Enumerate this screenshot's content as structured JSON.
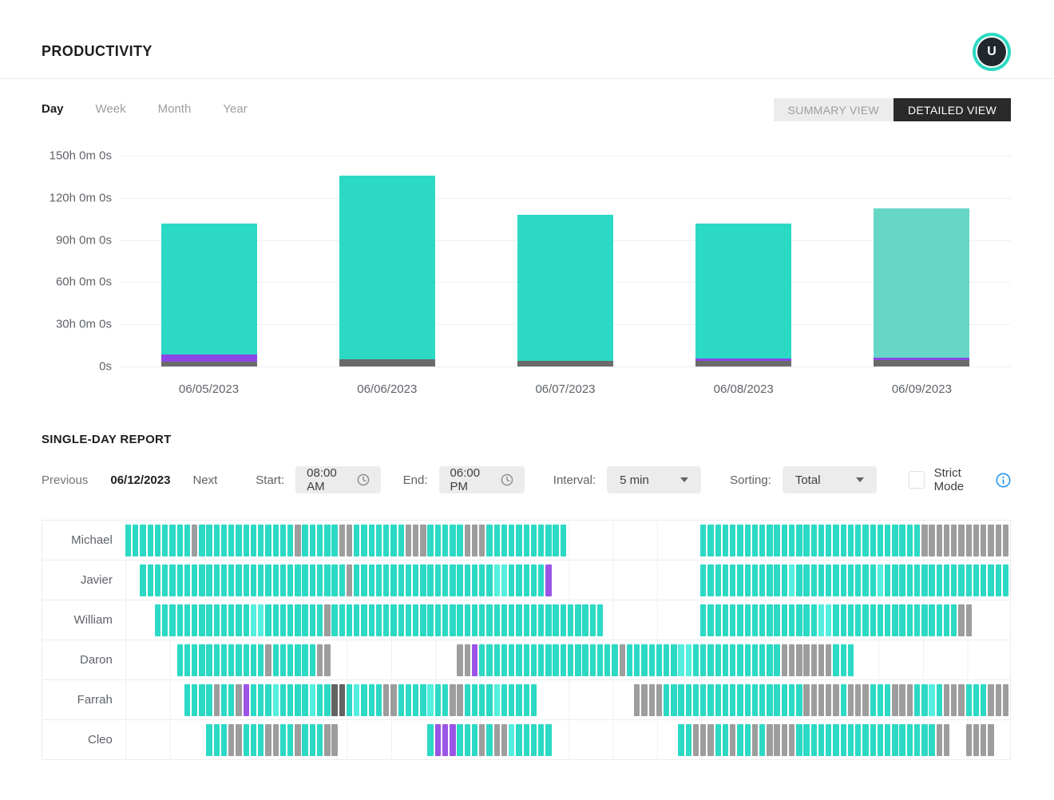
{
  "header": {
    "title": "PRODUCTIVITY",
    "avatar_initial": "U"
  },
  "tabs": [
    {
      "label": "Day",
      "active": true
    },
    {
      "label": "Week",
      "active": false
    },
    {
      "label": "Month",
      "active": false
    },
    {
      "label": "Year",
      "active": false
    }
  ],
  "view_toggle": {
    "summary": "SUMMARY VIEW",
    "detailed": "DETAILED VIEW",
    "active": "detailed"
  },
  "chart_data": {
    "type": "bar",
    "stacked": true,
    "title": "",
    "xlabel": "",
    "ylabel": "",
    "ylim": [
      0,
      150
    ],
    "grid": true,
    "yticks": [
      {
        "value": 0,
        "label": "0s"
      },
      {
        "value": 30,
        "label": "30h 0m 0s"
      },
      {
        "value": 60,
        "label": "60h 0m 0s"
      },
      {
        "value": 90,
        "label": "90h 0m 0s"
      },
      {
        "value": 120,
        "label": "120h 0m 0s"
      },
      {
        "value": 150,
        "label": "150h 0m 0s"
      }
    ],
    "categories": [
      "06/05/2023",
      "06/06/2023",
      "06/07/2023",
      "06/08/2023",
      "06/09/2023"
    ],
    "totals_hours": [
      101.5,
      136,
      108,
      101.5,
      112.5
    ],
    "bars": [
      {
        "date": "06/05/2023",
        "segments": [
          {
            "type": "gray",
            "hours": 3.5
          },
          {
            "type": "purple",
            "hours": 5
          },
          {
            "type": "teal",
            "hours": 93
          }
        ]
      },
      {
        "date": "06/06/2023",
        "segments": [
          {
            "type": "gray",
            "hours": 5
          },
          {
            "type": "teal",
            "hours": 131
          }
        ]
      },
      {
        "date": "06/07/2023",
        "segments": [
          {
            "type": "gray",
            "hours": 4
          },
          {
            "type": "teal",
            "hours": 104
          }
        ]
      },
      {
        "date": "06/08/2023",
        "segments": [
          {
            "type": "gray",
            "hours": 4
          },
          {
            "type": "purple",
            "hours": 1.5
          },
          {
            "type": "teal",
            "hours": 96
          }
        ]
      },
      {
        "date": "06/09/2023",
        "segments": [
          {
            "type": "gray",
            "hours": 4.5
          },
          {
            "type": "purple",
            "hours": 1.5
          },
          {
            "type": "teal_light",
            "hours": 106.5
          }
        ]
      }
    ],
    "colors": {
      "teal": "#2cd9c5",
      "teal_light": "#66d7c6",
      "gray": "#6a6a6a",
      "purple": "#8a47e6"
    }
  },
  "report": {
    "heading": "SINGLE-DAY REPORT",
    "previous_label": "Previous",
    "date": "06/12/2023",
    "next_label": "Next",
    "start_label": "Start:",
    "start_value": "08:00 AM",
    "end_label": "End:",
    "end_value": "06:00 PM",
    "interval_label": "Interval:",
    "interval_value": "5 min",
    "sorting_label": "Sorting:",
    "sorting_value": "Total",
    "strict_mode_label": "Strict Mode",
    "strict_mode_checked": false
  },
  "timeline": {
    "start": "08:00 AM",
    "end": "06:00 PM",
    "interval_minutes": 5,
    "cells_per_row": 120,
    "cell_colors": {
      "T": "#2cd9c5",
      "L": "#54efde",
      "G": "#9d9d9d",
      "D": "#636363",
      "P": "#9b54e6",
      ".": "transparent"
    },
    "rows": [
      {
        "name": "Michael",
        "cells": "9T 1G 13T 1G 5T 2G 7T 3G 5T 3G 11T 18. 30T 12G"
      },
      {
        "name": "Javier",
        "cells": "2. 28T 1G 19T 2L 5T 1P 20. 12T 1L 11T 1L 17T"
      },
      {
        "name": "William",
        "cells": "4. 13T 2L 8T 1G 37T 13. 16T 2L 17T 2G 5."
      },
      {
        "name": "Daron",
        "cells": "7. 12T 1G 6T 2G 17. 2G 1P 19T 1G 7T 2L 12T 7G 3T 21."
      },
      {
        "name": "Farrah",
        "cells": "8. 4T 1G 2T 1G 1P 3T 1L 4T 1L 2T 2D 1T 1L 3T 2G 4T 1L 2T 2G 4T 1L 5T 13. 4G 19T 5G 1T 3G 3T 3G 2T 1L 1T 3G 3T 3G"
      },
      {
        "name": "Cleo",
        "cells": "11. 3T 2G 3T 2G 2T 1G 3T 2G 12. 1T 3P 3T 1G 1T 2G 1L 5T 17. 2T 3G 2T 1G 2T 1G 1T 4G 19T 2G 2. 4G 2."
      }
    ]
  }
}
